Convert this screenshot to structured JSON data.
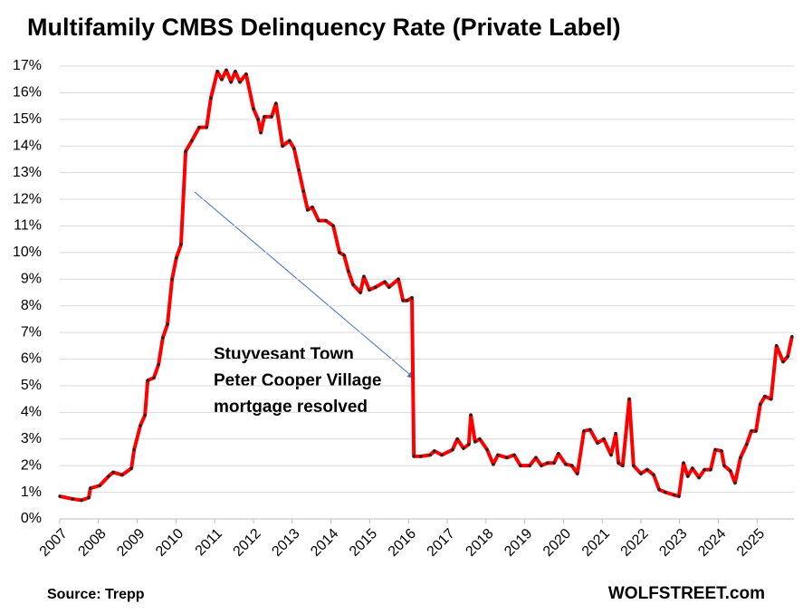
{
  "chart_data": {
    "type": "line",
    "title": "Multifamily CMBS Delinquency Rate (Private Label)",
    "annotation": [
      "Stuyvesant Town",
      "Peter Cooper Village",
      "mortgage resolved"
    ],
    "source": "Source: Trepp",
    "brand": "WOLFSTREET.com",
    "grid": true,
    "xlim": [
      2007,
      2025.95
    ],
    "xticks": [
      2007,
      2008,
      2009,
      2010,
      2011,
      2012,
      2013,
      2014,
      2015,
      2016,
      2017,
      2018,
      2019,
      2020,
      2021,
      2022,
      2023,
      2024,
      2025
    ],
    "ylim": [
      0,
      17
    ],
    "yticks": [
      {
        "value": 0,
        "label": "0%"
      },
      {
        "value": 1,
        "label": "1%"
      },
      {
        "value": 2,
        "label": "2%"
      },
      {
        "value": 3,
        "label": "3%"
      },
      {
        "value": 4,
        "label": "4%"
      },
      {
        "value": 5,
        "label": "5%"
      },
      {
        "value": 6,
        "label": "6%"
      },
      {
        "value": 7,
        "label": "7%"
      },
      {
        "value": 8,
        "label": "8%"
      },
      {
        "value": 9,
        "label": "9%"
      },
      {
        "value": 10,
        "label": "10%"
      },
      {
        "value": 11,
        "label": "11%"
      },
      {
        "value": 12,
        "label": "12%"
      },
      {
        "value": 13,
        "label": "13%"
      },
      {
        "value": 14,
        "label": "14%"
      },
      {
        "value": 15,
        "label": "15%"
      },
      {
        "value": 16,
        "label": "16%"
      },
      {
        "value": 17,
        "label": "17%"
      }
    ],
    "color": "#ff0000",
    "marker_color": "#222222",
    "x": [
      2007.0,
      2007.33,
      2007.56,
      2007.75,
      2007.79,
      2008.03,
      2008.26,
      2008.38,
      2008.61,
      2008.85,
      2008.92,
      2009.08,
      2009.2,
      2009.27,
      2009.43,
      2009.55,
      2009.66,
      2009.78,
      2009.9,
      2010.01,
      2010.13,
      2010.25,
      2010.41,
      2010.6,
      2010.79,
      2010.9,
      2011.07,
      2011.18,
      2011.3,
      2011.42,
      2011.53,
      2011.65,
      2011.81,
      2012.0,
      2012.12,
      2012.19,
      2012.28,
      2012.47,
      2012.58,
      2012.75,
      2012.93,
      2013.05,
      2013.17,
      2013.29,
      2013.4,
      2013.52,
      2013.68,
      2013.87,
      2014.06,
      2014.22,
      2014.34,
      2014.45,
      2014.57,
      2014.76,
      2014.85,
      2014.99,
      2015.15,
      2015.39,
      2015.5,
      2015.74,
      2015.86,
      2015.97,
      2016.09,
      2016.14,
      2016.32,
      2016.56,
      2016.67,
      2016.86,
      2017.14,
      2017.26,
      2017.42,
      2017.56,
      2017.61,
      2017.72,
      2017.84,
      2018.03,
      2018.19,
      2018.31,
      2018.54,
      2018.73,
      2018.89,
      2019.13,
      2019.29,
      2019.43,
      2019.59,
      2019.76,
      2019.87,
      2020.06,
      2020.22,
      2020.36,
      2020.53,
      2020.69,
      2020.88,
      2021.04,
      2021.23,
      2021.35,
      2021.42,
      2021.53,
      2021.7,
      2021.81,
      2022.0,
      2022.16,
      2022.33,
      2022.47,
      2022.63,
      2022.86,
      2022.98,
      2023.1,
      2023.21,
      2023.33,
      2023.5,
      2023.64,
      2023.8,
      2023.92,
      2024.08,
      2024.15,
      2024.31,
      2024.43,
      2024.57,
      2024.73,
      2024.85,
      2024.97,
      2025.08,
      2025.2,
      2025.36,
      2025.5,
      2025.67,
      2025.79,
      2025.9
    ],
    "values": [
      0.85,
      0.75,
      0.7,
      0.8,
      1.15,
      1.25,
      1.6,
      1.75,
      1.65,
      1.9,
      2.6,
      3.5,
      3.9,
      5.2,
      5.3,
      5.8,
      6.8,
      7.3,
      9.0,
      9.8,
      10.3,
      13.8,
      14.2,
      14.7,
      14.7,
      15.8,
      16.8,
      16.5,
      16.85,
      16.4,
      16.8,
      16.4,
      16.7,
      15.4,
      15.0,
      14.5,
      15.1,
      15.1,
      15.6,
      14.0,
      14.2,
      13.9,
      13.1,
      12.3,
      11.6,
      11.7,
      11.2,
      11.2,
      11.0,
      10.0,
      9.9,
      9.3,
      8.8,
      8.5,
      9.1,
      8.6,
      8.7,
      8.9,
      8.7,
      9.0,
      8.2,
      8.2,
      8.3,
      2.35,
      2.35,
      2.4,
      2.55,
      2.4,
      2.6,
      3.0,
      2.65,
      2.8,
      3.9,
      2.9,
      3.0,
      2.6,
      2.05,
      2.4,
      2.3,
      2.4,
      2.0,
      2.0,
      2.3,
      2.0,
      2.1,
      2.1,
      2.45,
      2.05,
      2.0,
      1.7,
      3.3,
      3.35,
      2.85,
      3.0,
      2.4,
      3.2,
      2.1,
      2.0,
      4.5,
      2.0,
      1.7,
      1.85,
      1.65,
      1.1,
      1.0,
      0.9,
      0.85,
      2.1,
      1.6,
      1.9,
      1.55,
      1.85,
      1.85,
      2.6,
      2.55,
      2.0,
      1.8,
      1.35,
      2.3,
      2.8,
      3.3,
      3.3,
      4.3,
      4.6,
      4.5,
      6.5,
      5.9,
      6.1,
      6.85
    ]
  }
}
